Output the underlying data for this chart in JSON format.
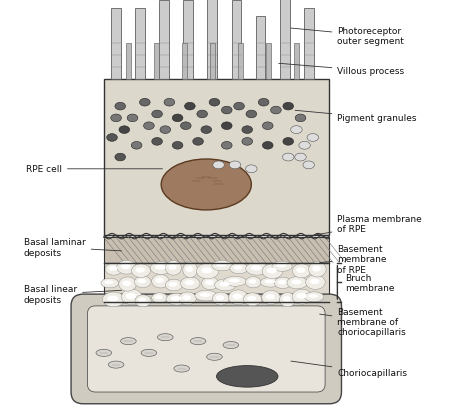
{
  "bg_color": "#ffffff",
  "figure_size": [
    4.74,
    4.14
  ],
  "dpi": 100,
  "labels": {
    "photoreceptor": "Photoreceptor\nouter segment",
    "villous": "Villous process",
    "pigment": "Pigment granules",
    "rpe_cell": "RPE cell",
    "plasma_membrane": "Plasma membrane\nof RPE",
    "basement_rpe": "Basement\nmembrane\nof RPE",
    "bruch": "Bruch\nmembrane",
    "basal_laminar": "Basal laminar\ndeposits",
    "basal_linear": "Basal linear\ndeposits",
    "basement_chorio": "Basement\nmembrane of\nchoriocapillaris",
    "choriocapillaris": "Choriocapillaris"
  },
  "colors": {
    "outline": "#2a2a2a",
    "cell_light": "#d8d0c0",
    "cell_mid": "#c8bfb0",
    "nucleus": "#8b6a50",
    "granule_dark": "#555555",
    "granule_mid": "#888888",
    "granule_light": "#aaaaaa",
    "photoreceptor": "#cccccc",
    "villous": "#bbbbbb",
    "basal_laminar_bg": "#b0a090",
    "basal_linear_bg": "#d0c8b8",
    "bruch_inner": "#e8e0d0",
    "chorio_bg": "#c8c0b0",
    "rbc": "#cccccc",
    "line_color": "#333333",
    "text_color": "#111111"
  }
}
